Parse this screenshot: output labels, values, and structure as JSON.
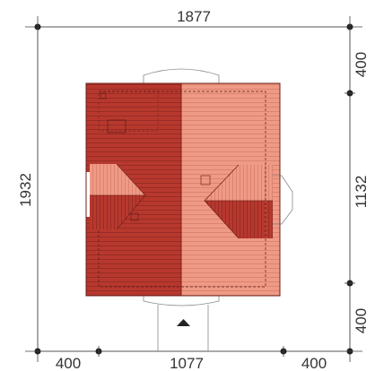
{
  "colors": {
    "roof_dark": "#b8382e",
    "roof_light": "#ef9a86",
    "roof_line_dark": "#8f2a22",
    "roof_line_light": "#d77e6a",
    "dim_line": "#444444",
    "dim_dot": "#222222",
    "outline": "#888888"
  },
  "dimensions": {
    "total_width": "1877",
    "total_depth": "1932",
    "bottom_left": "400",
    "bottom_middle": "1077",
    "bottom_right": "400",
    "right_top": "400",
    "right_middle": "1132",
    "right_bottom": "400"
  },
  "icons": {
    "entrance": "entrance-arrow-icon"
  }
}
